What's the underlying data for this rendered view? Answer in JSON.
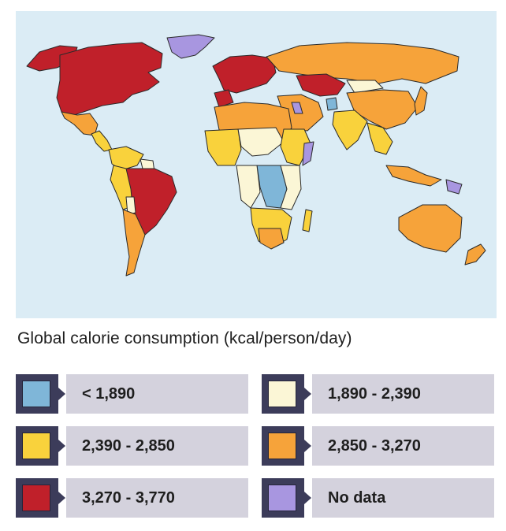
{
  "map": {
    "ocean_color": "#dbecf5",
    "border_color": "#2a2a2a",
    "title": "Global calorie consumption (kcal/person/day)"
  },
  "categories": {
    "low": {
      "color": "#7fb6d8"
    },
    "lowmid": {
      "color": "#fbf6d6"
    },
    "mid": {
      "color": "#f9d23c"
    },
    "midhigh": {
      "color": "#f6a33a"
    },
    "high": {
      "color": "#c0202a"
    },
    "nodata": {
      "color": "#a896e0"
    }
  },
  "legend": [
    {
      "label": "< 1,890",
      "color": "#7fb6d8"
    },
    {
      "label": "1,890 - 2,390",
      "color": "#fbf6d6"
    },
    {
      "label": "2,390 - 2,850",
      "color": "#f9d23c"
    },
    {
      "label": "2,850 - 3,270",
      "color": "#f6a33a"
    },
    {
      "label": "3,270 - 3,770",
      "color": "#c0202a"
    },
    {
      "label": "No data",
      "color": "#a896e0"
    }
  ]
}
